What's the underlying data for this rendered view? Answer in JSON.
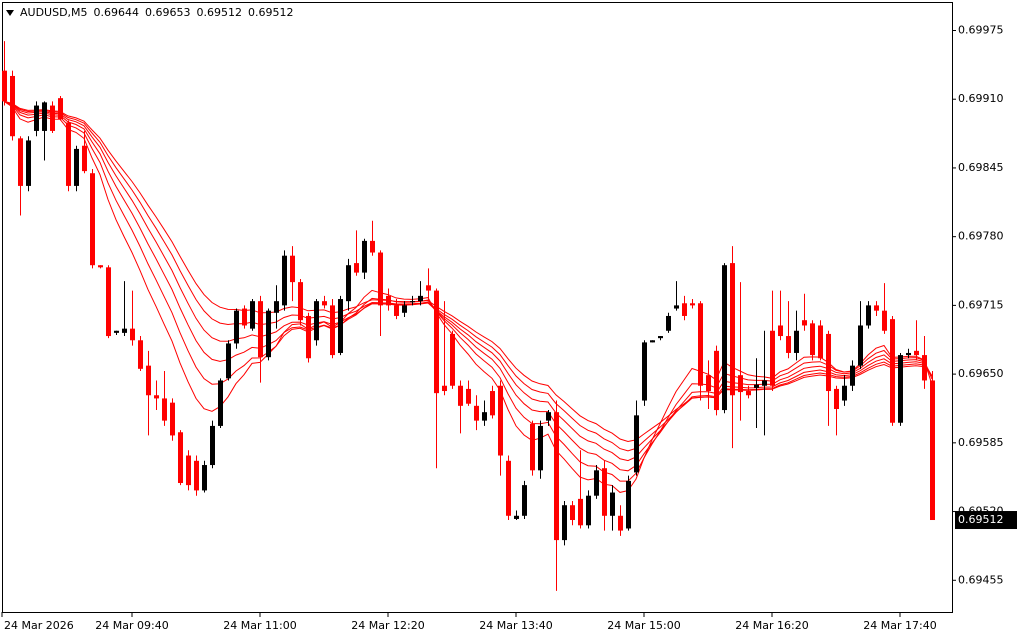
{
  "chart_data": {
    "type": "candlestick",
    "title": "AUDUSD,M5",
    "up_color": "#000000",
    "down_color": "#ff0000",
    "ylim": [
      0.69425,
      0.70001
    ],
    "yticks": [
      0.69975,
      {
        "value": 0.6991,
        "label": "0.69910"
      },
      0.69845,
      {
        "value": 0.6978,
        "label": "0.69780"
      },
      0.69715,
      {
        "value": 0.6965,
        "label": "0.69650"
      },
      0.69585,
      {
        "value": 0.6952,
        "label": "0.69520"
      },
      0.69455
    ],
    "xticks": [
      {
        "value": 0,
        "label": "24 Mar 2026"
      },
      {
        "value": 16,
        "label": "24 Mar 09:40"
      },
      {
        "value": 32,
        "label": "24 Mar 11:00"
      },
      {
        "value": 48,
        "label": "24 Mar 12:20"
      },
      {
        "value": 64,
        "label": "24 Mar 13:40"
      },
      {
        "value": 80,
        "label": "24 Mar 15:00"
      },
      {
        "value": 96,
        "label": "24 Mar 16:20"
      },
      {
        "value": 112,
        "label": "24 Mar 17:40"
      }
    ],
    "moving_averages": {
      "kind": "ema",
      "periods": [
        12,
        16,
        20,
        24,
        28,
        32
      ],
      "color": "#ff0000"
    },
    "candles": [
      [
        0.69937,
        0.69965,
        0.69904,
        0.69908
      ],
      [
        0.69932,
        0.69937,
        0.69871,
        0.69875
      ],
      [
        0.69873,
        0.69875,
        0.698,
        0.69828
      ],
      [
        0.69828,
        0.69875,
        0.69823,
        0.69871
      ],
      [
        0.6988,
        0.69908,
        0.69875,
        0.69904
      ],
      [
        0.6988,
        0.69908,
        0.69852,
        0.69907
      ],
      [
        0.69904,
        0.69908,
        0.69878,
        0.6988
      ],
      [
        0.69911,
        0.69913,
        0.6989,
        0.69891
      ],
      [
        0.69888,
        0.6989,
        0.69823,
        0.69828
      ],
      [
        0.69828,
        0.69866,
        0.69823,
        0.69863
      ],
      [
        0.69866,
        0.6988,
        0.6984,
        0.69842
      ],
      [
        0.6984,
        0.69844,
        0.6975,
        0.69753
      ],
      [
        0.69753,
        0.69753,
        0.6975,
        0.69751
      ],
      [
        0.69751,
        0.69753,
        0.69684,
        0.69686
      ],
      [
        0.69689,
        0.69691,
        0.69687,
        0.69691
      ],
      [
        0.69689,
        0.69738,
        0.69686,
        0.69693
      ],
      [
        0.69693,
        0.69729,
        0.69677,
        0.69682
      ],
      [
        0.69682,
        0.69686,
        0.69653,
        0.69655
      ],
      [
        0.69658,
        0.69672,
        0.69592,
        0.6963
      ],
      [
        0.6963,
        0.69644,
        0.69616,
        0.69627
      ],
      [
        0.69627,
        0.69653,
        0.69601,
        0.69606
      ],
      [
        0.69623,
        0.69627,
        0.69587,
        0.69592
      ],
      [
        0.69595,
        0.69597,
        0.69545,
        0.69547
      ],
      [
        0.69573,
        0.69578,
        0.6954,
        0.69545
      ],
      [
        0.69568,
        0.69573,
        0.69535,
        0.6954
      ],
      [
        0.6954,
        0.69568,
        0.69538,
        0.69564
      ],
      [
        0.69564,
        0.69606,
        0.69561,
        0.69601
      ],
      [
        0.69601,
        0.69646,
        0.69599,
        0.69644
      ],
      [
        0.69646,
        0.69682,
        0.69644,
        0.69679
      ],
      [
        0.69679,
        0.69712,
        0.69674,
        0.6971
      ],
      [
        0.69712,
        0.69715,
        0.69693,
        0.69696
      ],
      [
        0.69693,
        0.69721,
        0.69691,
        0.69719
      ],
      [
        0.69719,
        0.69724,
        0.69642,
        0.69666
      ],
      [
        0.69666,
        0.69712,
        0.69663,
        0.6971
      ],
      [
        0.69708,
        0.69734,
        0.69693,
        0.69719
      ],
      [
        0.69715,
        0.69767,
        0.6971,
        0.69762
      ],
      [
        0.69762,
        0.69771,
        0.69719,
        0.69737
      ],
      [
        0.69737,
        0.6974,
        0.69696,
        0.69701
      ],
      [
        0.69705,
        0.69708,
        0.69661,
        0.69665
      ],
      [
        0.69682,
        0.69721,
        0.69677,
        0.69719
      ],
      [
        0.69719,
        0.69724,
        0.69712,
        0.69715
      ],
      [
        0.69715,
        0.69721,
        0.69665,
        0.69668
      ],
      [
        0.6967,
        0.69724,
        0.69668,
        0.69721
      ],
      [
        0.69719,
        0.69759,
        0.6971,
        0.69753
      ],
      [
        0.69755,
        0.69786,
        0.69743,
        0.69746
      ],
      [
        0.69746,
        0.69778,
        0.6974,
        0.69776
      ],
      [
        0.69776,
        0.69795,
        0.69762,
        0.69765
      ],
      [
        0.69765,
        0.69767,
        0.69686,
        0.69715
      ],
      [
        0.69724,
        0.69731,
        0.6971,
        0.69715
      ],
      [
        0.69715,
        0.69721,
        0.69702,
        0.69705
      ],
      [
        0.69708,
        0.69719,
        0.69704,
        0.69715
      ],
      [
        0.69718,
        0.69724,
        0.69715,
        0.69719
      ],
      [
        0.69719,
        0.69738,
        0.69715,
        0.69724
      ],
      [
        0.69734,
        0.6975,
        0.69719,
        0.69729
      ],
      [
        0.69729,
        0.69731,
        0.69561,
        0.69632
      ],
      [
        0.69639,
        0.69719,
        0.6963,
        0.69634
      ],
      [
        0.69688,
        0.69691,
        0.69636,
        0.69639
      ],
      [
        0.69639,
        0.69644,
        0.69594,
        0.6962
      ],
      [
        0.69636,
        0.69644,
        0.6962,
        0.69622
      ],
      [
        0.6962,
        0.6963,
        0.69597,
        0.69606
      ],
      [
        0.69606,
        0.69625,
        0.69601,
        0.69614
      ],
      [
        0.69634,
        0.69639,
        0.69608,
        0.69611
      ],
      [
        0.69639,
        0.69644,
        0.69554,
        0.69573
      ],
      [
        0.69568,
        0.69573,
        0.69512,
        0.69516
      ],
      [
        0.69513,
        0.69521,
        0.69512,
        0.69516
      ],
      [
        0.69516,
        0.69549,
        0.69513,
        0.69545
      ],
      [
        0.69603,
        0.69606,
        0.69554,
        0.69559
      ],
      [
        0.69559,
        0.69606,
        0.69551,
        0.69601
      ],
      [
        0.69606,
        0.69616,
        0.69601,
        0.69614
      ],
      [
        0.69614,
        0.69625,
        0.69445,
        0.69493
      ],
      [
        0.69493,
        0.6953,
        0.69488,
        0.69526
      ],
      [
        0.69526,
        0.6953,
        0.69507,
        0.69512
      ],
      [
        0.69532,
        0.69578,
        0.69504,
        0.69507
      ],
      [
        0.69507,
        0.6954,
        0.69504,
        0.69535
      ],
      [
        0.69535,
        0.69564,
        0.69532,
        0.69559
      ],
      [
        0.69561,
        0.69568,
        0.69502,
        0.69516
      ],
      [
        0.69516,
        0.69545,
        0.69502,
        0.69538
      ],
      [
        0.69516,
        0.69526,
        0.69497,
        0.69502
      ],
      [
        0.69504,
        0.69554,
        0.69502,
        0.69549
      ],
      [
        0.69557,
        0.69625,
        0.69554,
        0.69611
      ],
      [
        0.69625,
        0.69682,
        0.6962,
        0.6968
      ],
      [
        0.6968,
        0.69682,
        0.6968,
        0.69682
      ],
      [
        0.69684,
        0.69686,
        0.69682,
        0.69686
      ],
      [
        0.69691,
        0.69708,
        0.69689,
        0.69705
      ],
      [
        0.69712,
        0.69738,
        0.6971,
        0.69715
      ],
      [
        0.69717,
        0.69724,
        0.69701,
        0.69705
      ],
      [
        0.69717,
        0.69721,
        0.69712,
        0.69715
      ],
      [
        0.69717,
        0.69719,
        0.69625,
        0.69639
      ],
      [
        0.69649,
        0.69663,
        0.69617,
        0.69634
      ],
      [
        0.69672,
        0.69677,
        0.69611,
        0.69616
      ],
      [
        0.69616,
        0.69755,
        0.69613,
        0.69753
      ],
      [
        0.69755,
        0.69771,
        0.6958,
        0.6963
      ],
      [
        0.69649,
        0.69737,
        0.69606,
        0.69633
      ],
      [
        0.69634,
        0.69639,
        0.69627,
        0.6963
      ],
      [
        0.69637,
        0.69665,
        0.69599,
        0.6964
      ],
      [
        0.69639,
        0.69691,
        0.69592,
        0.69644
      ],
      [
        0.69691,
        0.69729,
        0.69634,
        0.69639
      ],
      [
        0.69696,
        0.69729,
        0.69682,
        0.69686
      ],
      [
        0.69686,
        0.69719,
        0.69665,
        0.6967
      ],
      [
        0.6967,
        0.6971,
        0.69663,
        0.69691
      ],
      [
        0.69701,
        0.69726,
        0.69691,
        0.69696
      ],
      [
        0.69698,
        0.69701,
        0.69663,
        0.69668
      ],
      [
        0.69696,
        0.69701,
        0.69663,
        0.69665
      ],
      [
        0.69688,
        0.69691,
        0.69601,
        0.69634
      ],
      [
        0.69636,
        0.69639,
        0.69592,
        0.69617
      ],
      [
        0.69625,
        0.69649,
        0.6962,
        0.69639
      ],
      [
        0.69639,
        0.69663,
        0.69634,
        0.69658
      ],
      [
        0.69658,
        0.69719,
        0.69655,
        0.69696
      ],
      [
        0.69696,
        0.69719,
        0.69693,
        0.69715
      ],
      [
        0.69715,
        0.69719,
        0.69705,
        0.6971
      ],
      [
        0.6971,
        0.69736,
        0.69688,
        0.69691
      ],
      [
        0.69702,
        0.69705,
        0.69601,
        0.69604
      ],
      [
        0.69604,
        0.6967,
        0.69601,
        0.69668
      ],
      [
        0.69668,
        0.69674,
        0.69665,
        0.6967
      ],
      [
        0.69672,
        0.69701,
        0.69663,
        0.69668
      ],
      [
        0.69668,
        0.69686,
        0.69636,
        0.69644
      ],
      [
        0.69644,
        0.69653,
        0.69512,
        0.69512
      ]
    ]
  }
}
